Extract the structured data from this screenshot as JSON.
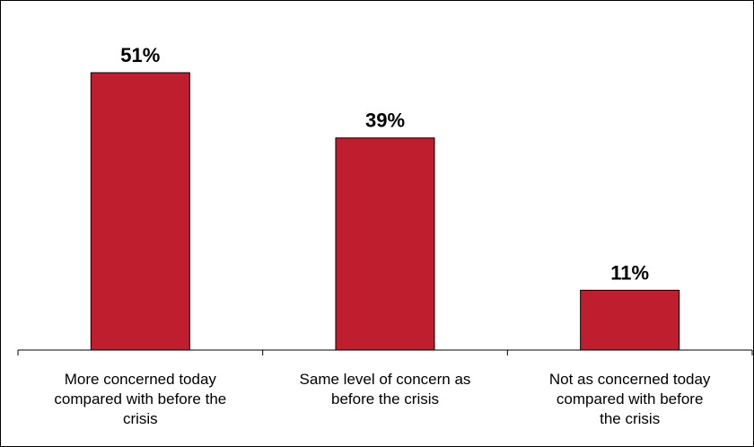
{
  "chart_data": {
    "type": "bar",
    "categories": [
      "More concerned today compared with before the crisis",
      "Same level of concern as before the crisis",
      "Not as concerned today compared with before the crisis"
    ],
    "category_lines": [
      [
        "More concerned today",
        "compared with before the",
        "crisis"
      ],
      [
        "Same level of concern as",
        "before the crisis"
      ],
      [
        "Not as concerned today",
        "compared with before",
        "the crisis"
      ]
    ],
    "values": [
      51,
      39,
      11
    ],
    "value_labels": [
      "51%",
      "39%",
      "11%"
    ],
    "title": "",
    "xlabel": "",
    "ylabel": "",
    "ylim": [
      0,
      60
    ],
    "grid": false,
    "legend": "none",
    "bar_color": "#be1e2d"
  }
}
